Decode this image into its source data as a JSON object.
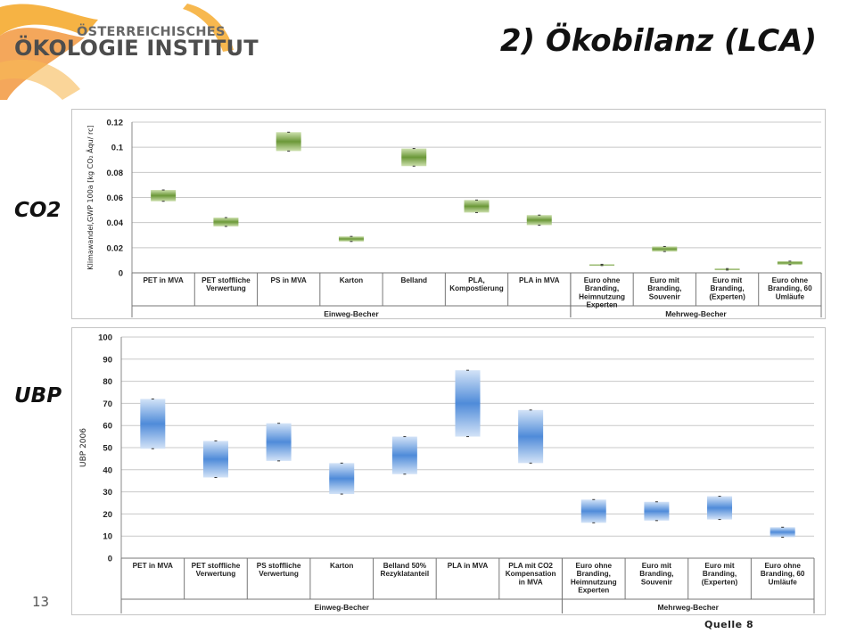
{
  "logo": {
    "line1": "ÖSTERREICHISCHES",
    "line2": "ÖKOLOGIE INSTITUT"
  },
  "title": "2) Ökobilanz (LCA)",
  "page_number": "13",
  "source": "Quelle 8",
  "colors": {
    "co2_box": "#8db05a",
    "co2_box_dark": "#5e8a2e",
    "ubp_box": "#5b94dc",
    "ubp_box_light": "#cfe0f6"
  },
  "charts": [
    {
      "side_label": "CO2",
      "chart_data": {
        "type": "box",
        "ylabel": "Klimawandel,GWP 100a [kg CO₂ Äqu/ rc]",
        "ylim": [
          0,
          0.12
        ],
        "yticks": [
          "0.12",
          "0.1",
          "0.08",
          "0.06",
          "0.04",
          "0.02",
          "0"
        ],
        "grid": true,
        "categories": [
          [
            "PET in MVA"
          ],
          [
            "PET stoffliche",
            "Verwertung"
          ],
          [
            "PS in MVA"
          ],
          [
            "Karton"
          ],
          [
            "Belland"
          ],
          [
            "PLA,",
            "Kompostierung"
          ],
          [
            "PLA in MVA"
          ],
          [
            "Euro ohne",
            "Branding,",
            "Heimnutzung",
            "Experten"
          ],
          [
            "Euro mit",
            "Branding,",
            "Souvenir"
          ],
          [
            "Euro mit",
            "Branding,",
            "(Experten)"
          ],
          [
            "Euro ohne",
            "Branding, 60",
            "Umläufe"
          ]
        ],
        "groups": [
          {
            "label": "Einweg-Becher",
            "count": 7
          },
          {
            "label": "Mehrweg-Becher",
            "count": 4
          }
        ],
        "boxes": [
          {
            "low": 0.057,
            "high": 0.066
          },
          {
            "low": 0.037,
            "high": 0.044
          },
          {
            "low": 0.097,
            "high": 0.112
          },
          {
            "low": 0.025,
            "high": 0.029
          },
          {
            "low": 0.085,
            "high": 0.099
          },
          {
            "low": 0.048,
            "high": 0.058
          },
          {
            "low": 0.038,
            "high": 0.046
          },
          {
            "low": 0.0058,
            "high": 0.0068
          },
          {
            "low": 0.017,
            "high": 0.021
          },
          {
            "low": 0.0022,
            "high": 0.0034
          },
          {
            "low": 0.0065,
            "high": 0.0093
          }
        ]
      }
    },
    {
      "side_label": "UBP",
      "chart_data": {
        "type": "box",
        "ylabel": "UBP 2006",
        "ylim": [
          0,
          100
        ],
        "yticks": [
          "100",
          "90",
          "80",
          "70",
          "60",
          "50",
          "40",
          "30",
          "20",
          "10",
          "0"
        ],
        "grid": true,
        "categories": [
          [
            "PET in MVA"
          ],
          [
            "PET stoffliche",
            "Verwertung"
          ],
          [
            "PS stoffliche",
            "Verwertung"
          ],
          [
            "Karton"
          ],
          [
            "Belland 50%",
            "Rezyklatanteil"
          ],
          [
            "PLA in MVA"
          ],
          [
            "PLA mit CO2",
            "Kompensation",
            "in MVA"
          ],
          [
            "Euro ohne",
            "Branding,",
            "Heimnutzung",
            "Experten"
          ],
          [
            "Euro mit",
            "Branding,",
            "Souvenir"
          ],
          [
            "Euro mit",
            "Branding,",
            "(Experten)"
          ],
          [
            "Euro ohne",
            "Branding, 60",
            "Umläufe"
          ]
        ],
        "groups": [
          {
            "label": "Einweg-Becher",
            "count": 7
          },
          {
            "label": "Mehrweg-Becher",
            "count": 4
          }
        ],
        "boxes": [
          {
            "low": 49.5,
            "high": 72
          },
          {
            "low": 36.5,
            "high": 53
          },
          {
            "low": 44,
            "high": 61
          },
          {
            "low": 29,
            "high": 43
          },
          {
            "low": 38,
            "high": 55
          },
          {
            "low": 55,
            "high": 85
          },
          {
            "low": 43,
            "high": 67
          },
          {
            "low": 16,
            "high": 26.5
          },
          {
            "low": 17,
            "high": 25.5
          },
          {
            "low": 17.5,
            "high": 28
          },
          {
            "low": 9.5,
            "high": 14
          }
        ]
      }
    }
  ]
}
